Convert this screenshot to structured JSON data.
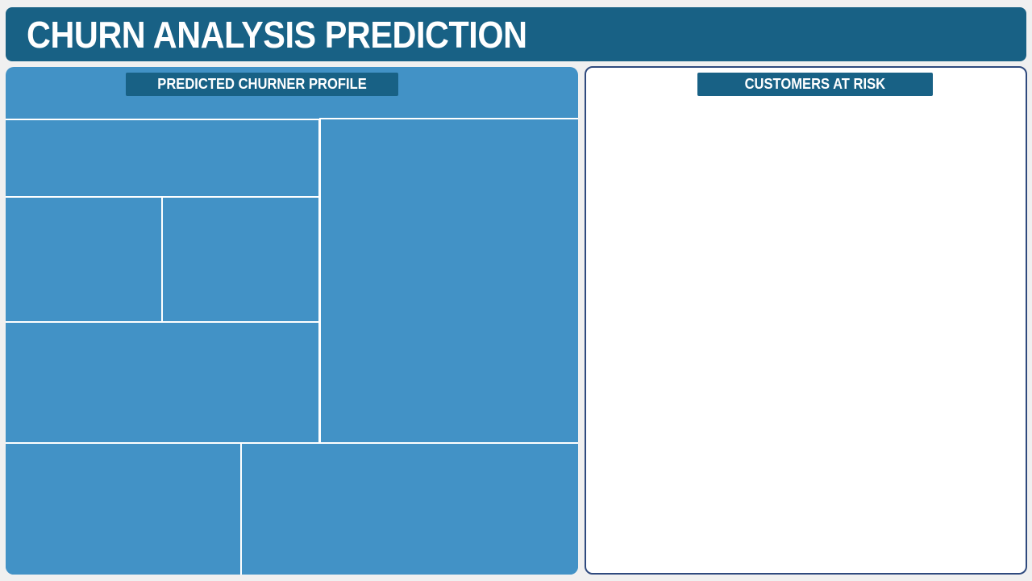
{
  "header": {
    "title": "CHURN ANALYSIS PREDICTION"
  },
  "left_panel": {
    "label": "PREDICTED CHURNER PROFILE"
  },
  "right_panel": {
    "label": "CUSTOMERS AT RISK"
  },
  "colors": {
    "page_background": "#f0f0f0",
    "header_background": "#186185",
    "label_background": "#186185",
    "profile_panel_background": "#4292c6",
    "risk_panel_background": "#ffffff",
    "risk_panel_border": "#2f4a7e",
    "text": "#ffffff"
  }
}
